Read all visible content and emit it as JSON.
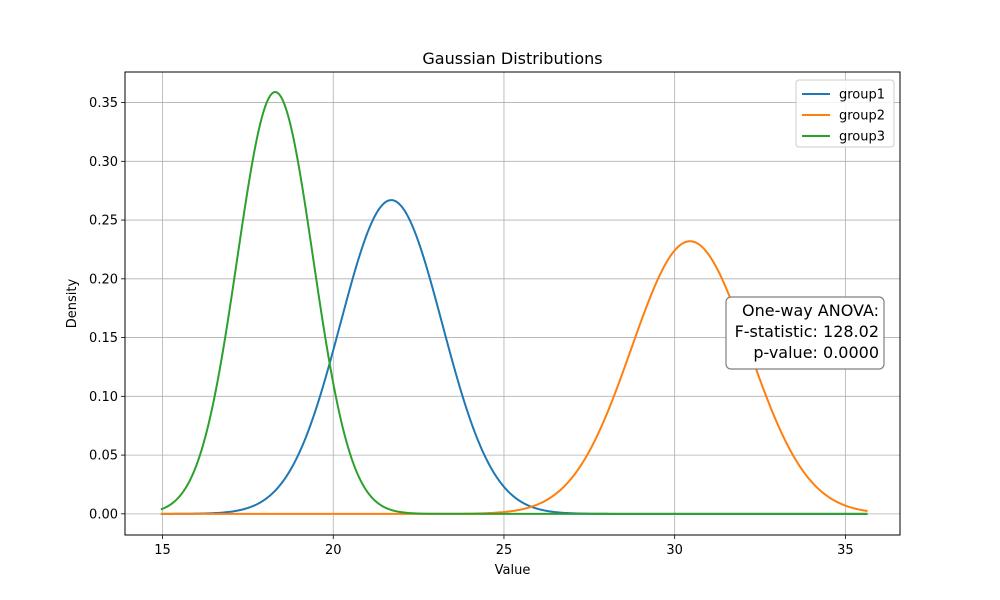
{
  "chart_data": {
    "type": "line",
    "title": "Gaussian Distributions",
    "xlabel": "Value",
    "ylabel": "Density",
    "xlim": [
      13.9,
      36.6
    ],
    "ylim": [
      -0.018,
      0.376
    ],
    "xticks": [
      15,
      20,
      25,
      30,
      35
    ],
    "yticks": [
      0.0,
      0.05,
      0.1,
      0.15,
      0.2,
      0.25,
      0.3,
      0.35
    ],
    "xtick_labels": [
      "15",
      "20",
      "25",
      "30",
      "35"
    ],
    "ytick_labels": [
      "0.00",
      "0.05",
      "0.10",
      "0.15",
      "0.20",
      "0.25",
      "0.30",
      "0.35"
    ],
    "grid": true,
    "legend": {
      "placement": "top-right"
    },
    "x_range": [
      14.95,
      35.65
    ],
    "series": [
      {
        "name": "group1",
        "color": "#1f77b4",
        "distribution": "normal",
        "mean": 21.7,
        "std": 1.49,
        "peak": 0.267
      },
      {
        "name": "group2",
        "color": "#ff7f0e",
        "distribution": "normal",
        "mean": 30.45,
        "std": 1.72,
        "peak": 0.232
      },
      {
        "name": "group3",
        "color": "#2ca02c",
        "distribution": "normal",
        "mean": 18.3,
        "std": 1.11,
        "peak": 0.359
      }
    ],
    "annotation": {
      "lines": [
        "One-way ANOVA:",
        "F-statistic: 128.02",
        "p-value: 0.0000"
      ],
      "placement": "right"
    }
  }
}
